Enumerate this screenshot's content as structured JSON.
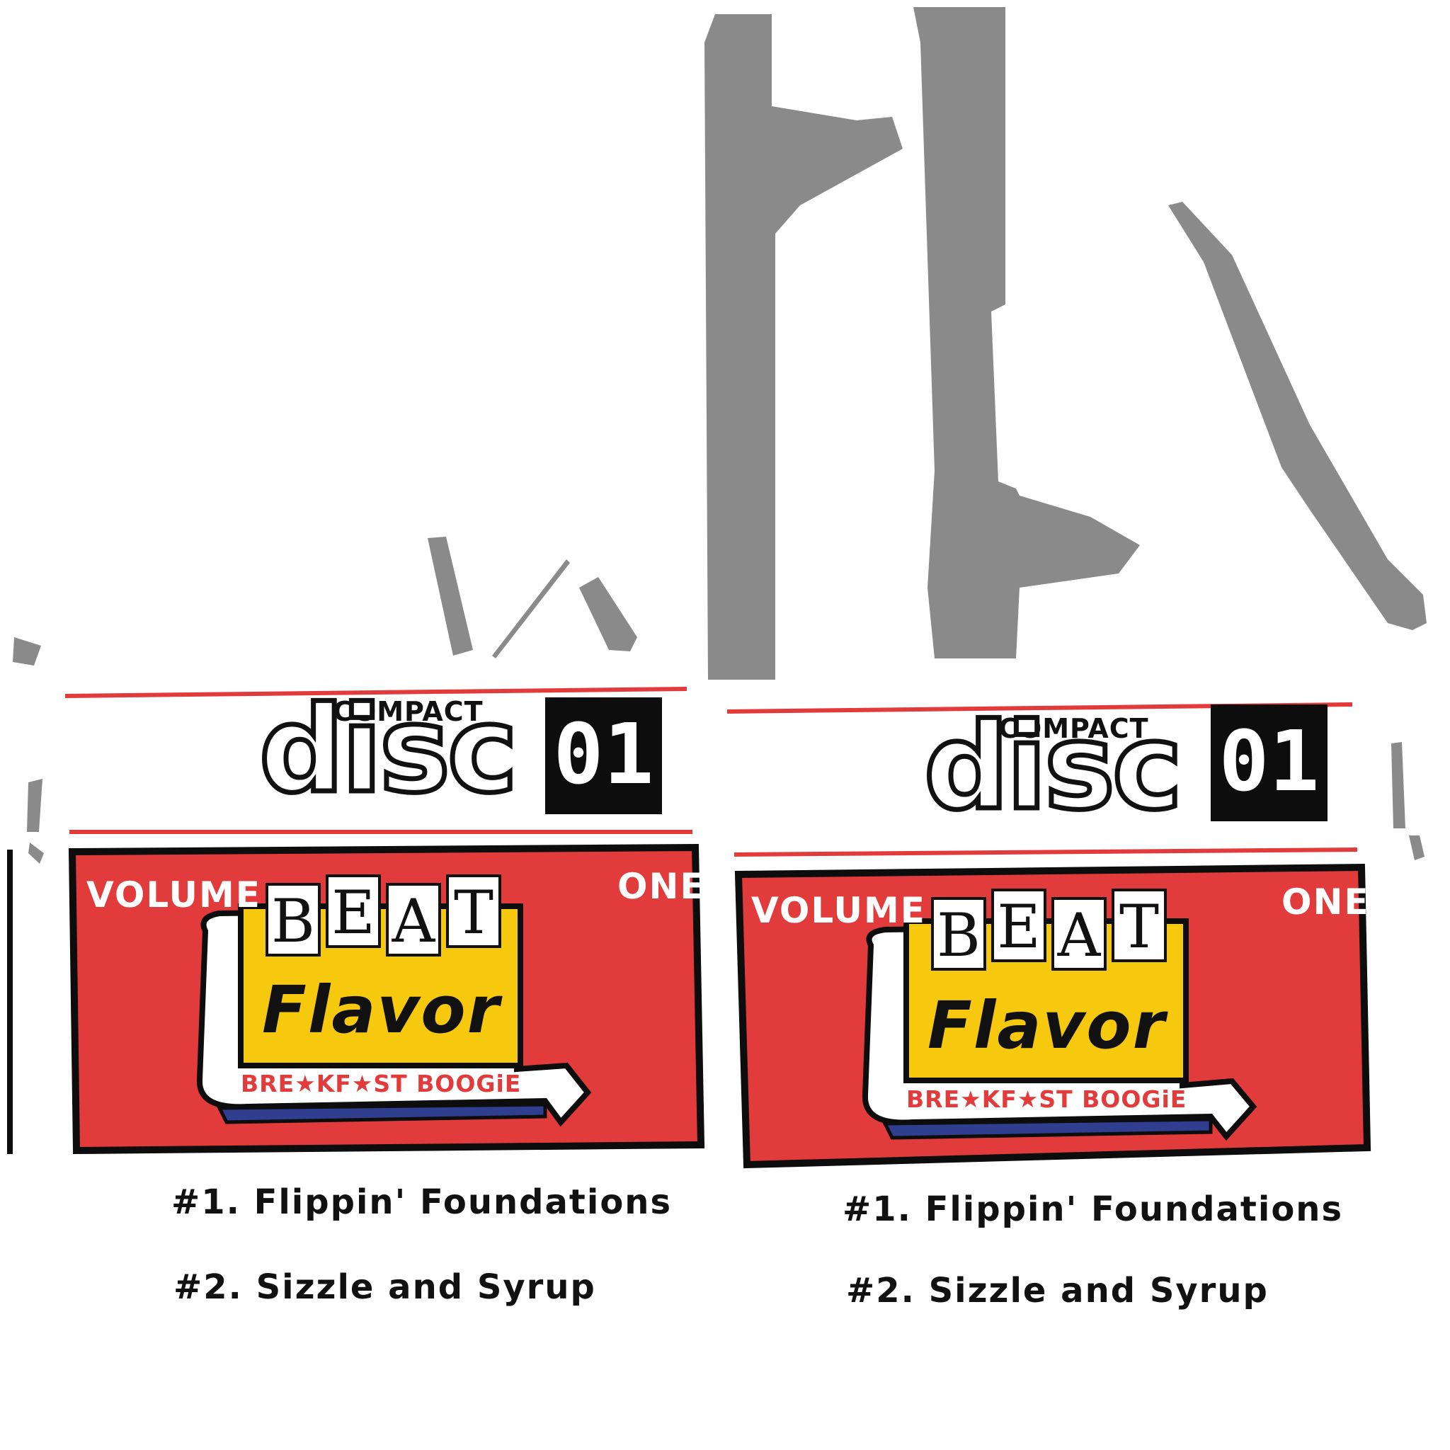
{
  "cards": [
    {
      "compact": "COMPACT",
      "disc": "disc",
      "number": "01",
      "volume_left": "VOLUME",
      "volume_right": "ONE",
      "beat_letters": [
        "B",
        "E",
        "A",
        "T"
      ],
      "flavor": "Flavor",
      "tagline": "BRE★KF★ST BOOGiE",
      "tracks": [
        "#1. Flippin' Foundations",
        "#2. Sizzle and Syrup"
      ]
    },
    {
      "compact": "COMPACT",
      "disc": "disc",
      "number": "01",
      "volume_left": "VOLUME",
      "volume_right": "ONE",
      "beat_letters": [
        "B",
        "E",
        "A",
        "T"
      ],
      "flavor": "Flavor",
      "tagline": "BRE★KF★ST BOOGiE",
      "tracks": [
        "#1. Flippin' Foundations",
        "#2. Sizzle and Syrup"
      ]
    }
  ],
  "colors": {
    "red": "#e23b3b",
    "yellow": "#f6c90e",
    "navy": "#2f3e8e",
    "gray": "#8a8a8a",
    "black": "#0d0d0d"
  }
}
